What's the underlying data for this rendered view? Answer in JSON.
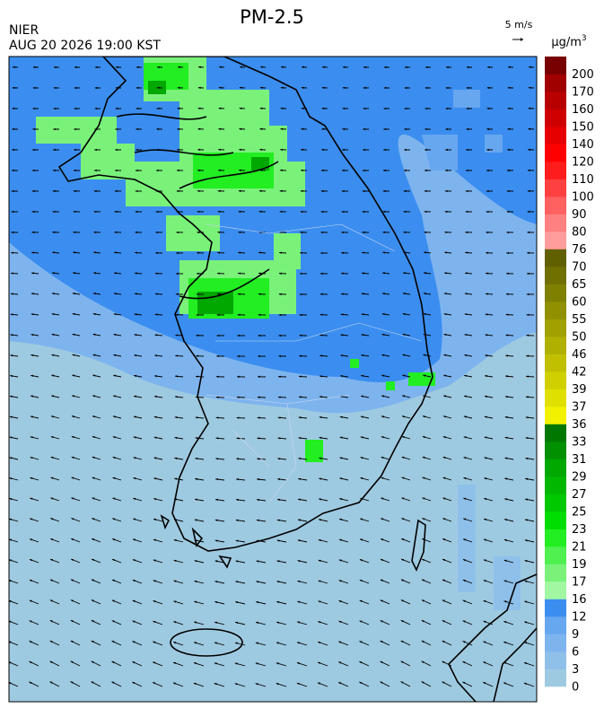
{
  "header": {
    "agency": "NIER",
    "datetime": "AUG 20 2026 19:00 KST",
    "title": "PM-2.5",
    "wind_scale": "5 m/s"
  },
  "colorbar": {
    "unit": "μg/m",
    "unit_sup": "3",
    "labels": [
      0,
      3,
      6,
      9,
      12,
      16,
      17,
      19,
      21,
      23,
      25,
      27,
      29,
      31,
      33,
      36,
      37,
      39,
      42,
      46,
      50,
      55,
      60,
      65,
      70,
      76,
      80,
      90,
      100,
      110,
      120,
      140,
      150,
      160,
      170,
      200
    ],
    "colors": [
      "#9ecae1",
      "#8fc0ea",
      "#7eb4ee",
      "#67a7f0",
      "#3b8ef0",
      "#a2f8a2",
      "#7af27a",
      "#4ff04f",
      "#22ee22",
      "#00dd00",
      "#00c800",
      "#00b800",
      "#00a800",
      "#009000",
      "#007800",
      "#f2f200",
      "#e0e000",
      "#d0d000",
      "#c0c000",
      "#b0b000",
      "#a0a000",
      "#909000",
      "#808000",
      "#707000",
      "#606000",
      "#ff9c9c",
      "#ff8080",
      "#ff6060",
      "#ff4040",
      "#ff1c1c",
      "#ff0000",
      "#e60000",
      "#cf0000",
      "#b80000",
      "#a00000",
      "#780000"
    ]
  }
}
